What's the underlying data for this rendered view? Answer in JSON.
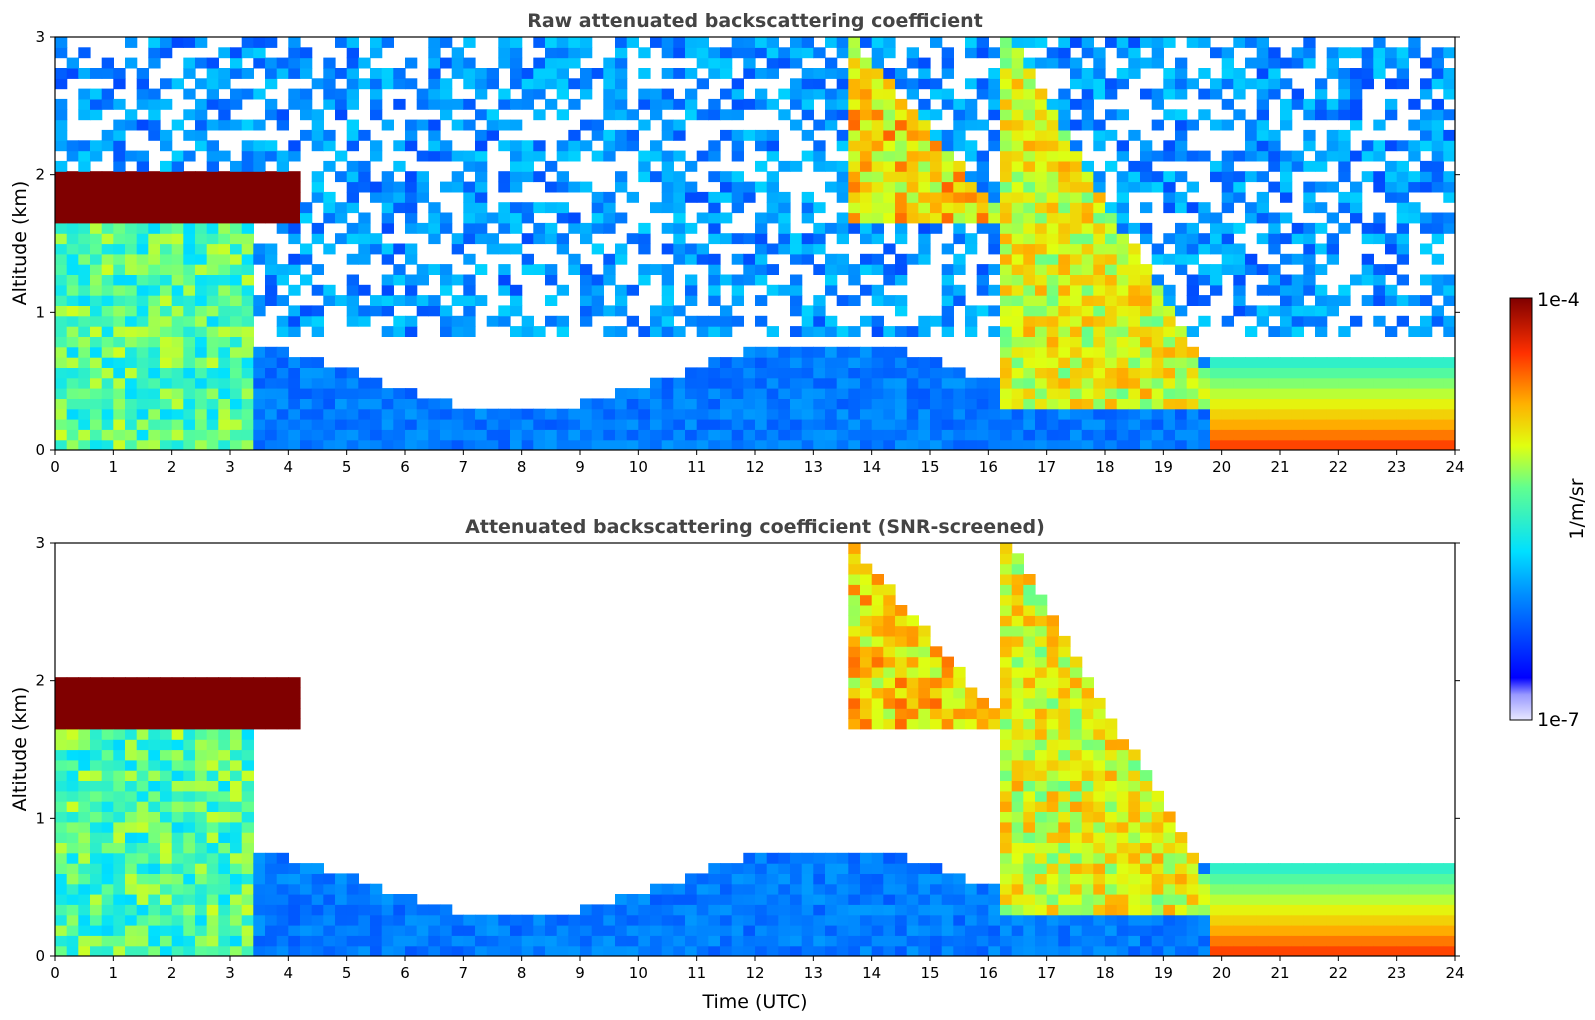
{
  "chart_data": [
    {
      "type": "heatmap",
      "title": "Raw attenuated backscattering coefficient",
      "xlabel": "",
      "ylabel": "Altitude (km)",
      "xlim": [
        0,
        24
      ],
      "ylim": [
        0,
        3
      ],
      "x_ticks": [
        "0",
        "1",
        "2",
        "3",
        "4",
        "5",
        "6",
        "7",
        "8",
        "9",
        "10",
        "11",
        "12",
        "13",
        "14",
        "15",
        "16",
        "17",
        "18",
        "19",
        "20",
        "21",
        "22",
        "23",
        "24"
      ],
      "y_ticks": [
        "0",
        "1",
        "2",
        "3"
      ],
      "grid": false,
      "screening": "none",
      "features": [
        {
          "kind": "cloud_layer",
          "t_start": 0,
          "t_end": 4.1,
          "alt_min": 1.65,
          "alt_max": 1.95,
          "level": 1.0
        },
        {
          "kind": "boundary_layer",
          "t_start": 0,
          "t_end": 3.2,
          "alt_max": 1.6,
          "level": 0.55
        },
        {
          "kind": "fall_streak",
          "t_start": 13.5,
          "t_end": 16.0,
          "alt_top": 3.0,
          "alt_bottom": 1.6,
          "level": 0.78
        },
        {
          "kind": "fall_streak",
          "t_start": 16.2,
          "t_end": 19.6,
          "alt_top": 3.0,
          "alt_bottom": 0.3,
          "level": 0.72
        },
        {
          "kind": "dense_layer",
          "t_start": 19.7,
          "t_end": 23.8,
          "alt_max": 0.6,
          "level": 0.85
        },
        {
          "kind": "noise_region",
          "t_start": 0,
          "t_end": 24,
          "alt_min": 0.8,
          "alt_max": 3.0,
          "level": 0.25
        }
      ]
    },
    {
      "type": "heatmap",
      "title": "Attenuated backscattering coefficient (SNR-screened)",
      "xlabel": "Time (UTC)",
      "ylabel": "Altitude (km)",
      "xlim": [
        0,
        24
      ],
      "ylim": [
        0,
        3
      ],
      "x_ticks": [
        "0",
        "1",
        "2",
        "3",
        "4",
        "5",
        "6",
        "7",
        "8",
        "9",
        "10",
        "11",
        "12",
        "13",
        "14",
        "15",
        "16",
        "17",
        "18",
        "19",
        "20",
        "21",
        "22",
        "23",
        "24"
      ],
      "y_ticks": [
        "0",
        "1",
        "2",
        "3"
      ],
      "grid": false,
      "screening": "SNR",
      "features": [
        {
          "kind": "cloud_layer",
          "t_start": 0,
          "t_end": 4.1,
          "alt_min": 1.65,
          "alt_max": 1.95,
          "level": 1.0
        },
        {
          "kind": "boundary_layer",
          "t_start": 0,
          "t_end": 3.2,
          "alt_max": 1.6,
          "level": 0.55
        },
        {
          "kind": "fall_streak",
          "t_start": 13.5,
          "t_end": 16.0,
          "alt_top": 3.0,
          "alt_bottom": 1.6,
          "level": 0.78
        },
        {
          "kind": "fall_streak",
          "t_start": 16.2,
          "t_end": 19.6,
          "alt_top": 3.0,
          "alt_bottom": 0.3,
          "level": 0.72
        },
        {
          "kind": "dense_layer",
          "t_start": 19.7,
          "t_end": 23.8,
          "alt_max": 0.6,
          "level": 0.85
        }
      ]
    }
  ],
  "colorbar": {
    "label": "1/m/sr",
    "max_label": "1e-4",
    "min_label": "1e-7",
    "colormap": "jet"
  }
}
